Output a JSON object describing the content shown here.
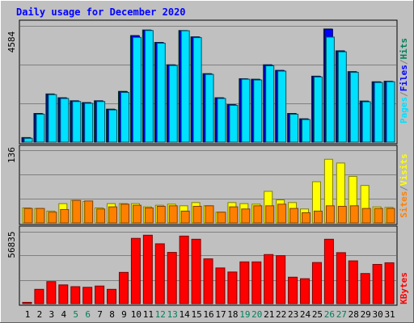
{
  "title": "Daily usage for December 2020",
  "colors": {
    "background": "#C0C0C0",
    "title": "#0000FF",
    "grid": "#808080",
    "hits": "#00805C",
    "files": "#0000FF",
    "pages": "#00E0FF",
    "visits": "#FFFF00",
    "sites": "#FF8000",
    "kbytes": "#FF0000",
    "weekend_label": "#00805C"
  },
  "legend": {
    "top": [
      "Pages",
      "/",
      "Files",
      "/",
      "Hits"
    ],
    "middle": [
      "Sites",
      "/",
      "Visits"
    ],
    "bottom": [
      "KBytes"
    ]
  },
  "panel_max_labels": {
    "top": "4584",
    "middle": "136",
    "bottom": "56835"
  },
  "chart_data": {
    "type": "bar",
    "title": "Daily usage for December 2020",
    "x": [
      "1",
      "2",
      "3",
      "4",
      "5",
      "6",
      "7",
      "8",
      "9",
      "10",
      "11",
      "12",
      "13",
      "14",
      "15",
      "16",
      "17",
      "18",
      "19",
      "20",
      "21",
      "22",
      "23",
      "24",
      "25",
      "26",
      "27",
      "28",
      "29",
      "30",
      "31"
    ],
    "weekend_days": [
      "5",
      "6",
      "12",
      "13",
      "19",
      "20",
      "26",
      "27"
    ],
    "panels": [
      {
        "name": "top",
        "ymax": 4584,
        "series": [
          {
            "name": "Hits",
            "values": [
              180,
              1130,
              1900,
              1750,
              1630,
              1560,
              1630,
              1300,
              2000,
              4200,
              4420,
              3930,
              3050,
              4400,
              4150,
              2700,
              1750,
              1480,
              2500,
              2480,
              3050,
              2830,
              1130,
              920,
              2600,
              4460,
              3600,
              2780,
              1620,
              2380,
              2400
            ]
          },
          {
            "name": "Files",
            "values": [
              170,
              1120,
              1880,
              1740,
              1620,
              1550,
              1620,
              1290,
              1990,
              4190,
              4410,
              3920,
              3040,
              4390,
              4140,
              2690,
              1740,
              1470,
              2490,
              2470,
              3040,
              2820,
              1120,
              910,
              2590,
              4450,
              3590,
              2770,
              1610,
              2370,
              2390
            ]
          },
          {
            "name": "Pages",
            "values": [
              150,
              1100,
              1870,
              1720,
              1600,
              1530,
              1600,
              1270,
              1960,
              4130,
              4400,
              3900,
              3020,
              4390,
              4120,
              2670,
              1720,
              1450,
              2480,
              2450,
              3010,
              2800,
              1100,
              890,
              2570,
              4140,
              3560,
              2750,
              1590,
              2350,
              2380
            ]
          }
        ]
      },
      {
        "name": "middle",
        "ymax": 136,
        "series": [
          {
            "name": "Visits",
            "values": [
              28,
              27,
              22,
              36,
              42,
              40,
              28,
              36,
              36,
              36,
              30,
              33,
              35,
              32,
              38,
              32,
              20,
              38,
              36,
              35,
              59,
              43,
              38,
              26,
              77,
              119,
              112,
              87,
              70,
              30,
              29
            ]
          },
          {
            "name": "Sites",
            "values": [
              27,
              27,
              20,
              25,
              42,
              41,
              26,
              30,
              35,
              33,
              28,
              31,
              32,
              22,
              31,
              32,
              20,
              30,
              26,
              32,
              32,
              35,
              27,
              19,
              22,
              32,
              31,
              32,
              27,
              27,
              27
            ]
          }
        ]
      },
      {
        "name": "bottom",
        "ymax": 56835,
        "series": [
          {
            "name": "KBytes",
            "values": [
              1000,
              11300,
              17400,
              14800,
              13400,
              12900,
              13900,
              11300,
              24700,
              51600,
              54100,
              47300,
              40500,
              53400,
              50900,
              35400,
              28200,
              25000,
              33000,
              33000,
              38800,
              37900,
              20900,
              19700,
              32500,
              50900,
              40300,
              33800,
              23800,
              31000,
              32300
            ]
          }
        ]
      }
    ]
  }
}
